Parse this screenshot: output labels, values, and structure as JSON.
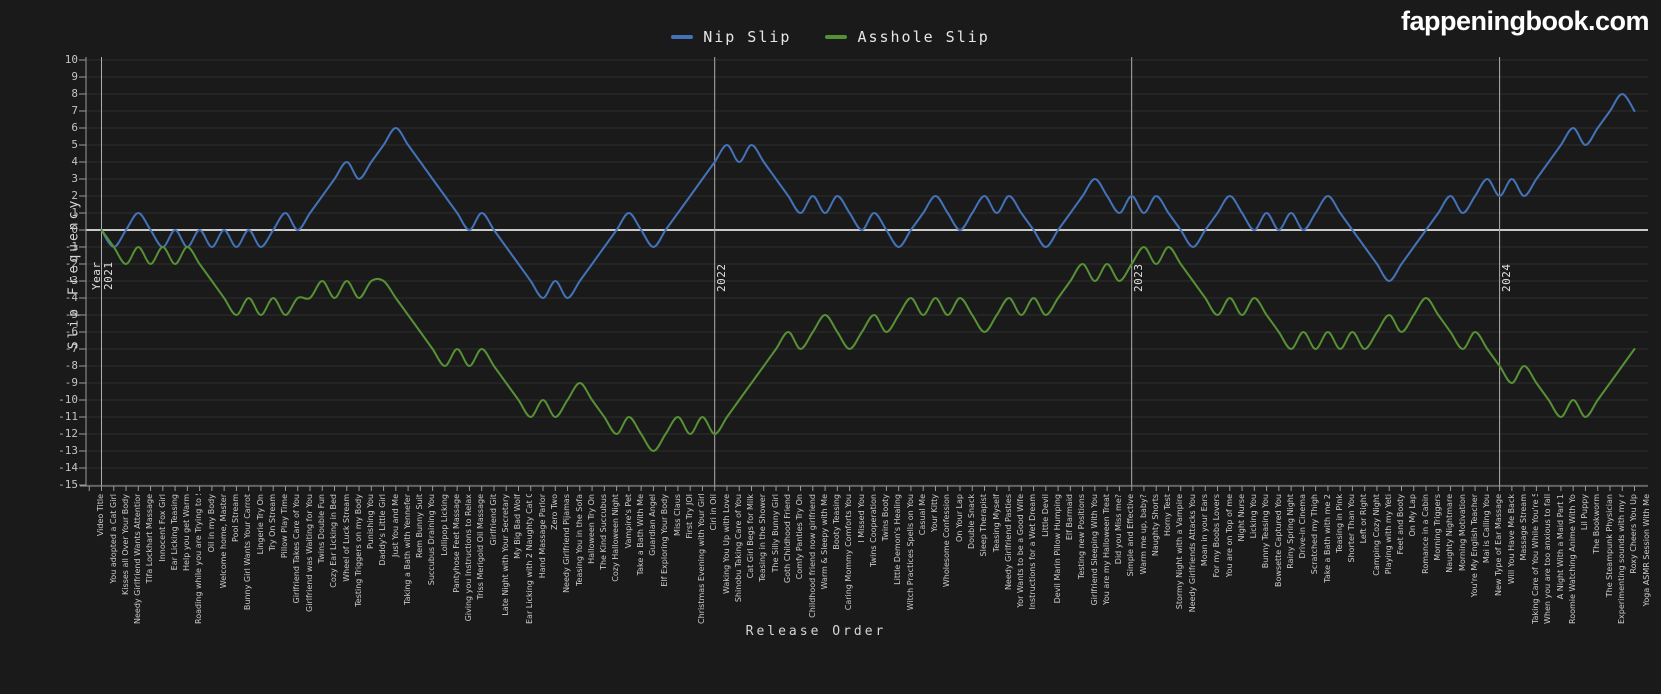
{
  "site": {
    "logo": "fappeningbook.com"
  },
  "chart_data": {
    "type": "line",
    "title": "",
    "xlabel": "Release Order",
    "ylabel": "Slip Frequency",
    "ylim": [
      -15,
      10
    ],
    "grid": true,
    "legend_position": "top-center",
    "y_ticks": [
      10,
      9,
      8,
      7,
      6,
      5,
      4,
      3,
      2,
      1,
      0,
      -1,
      -2,
      -3,
      -4,
      -5,
      -6,
      -7,
      -8,
      -9,
      -10,
      -11,
      -12,
      -13,
      -14,
      -15
    ],
    "colors": {
      "background": "#1a1a1a",
      "grid": "#2f2f2f",
      "zero_line": "#c9c9c9",
      "year_line": "#aeaeae",
      "axis": "#9a9a9a",
      "tick_text": "#c4c4c4",
      "nip_slip": "#4472b8",
      "asshole_slip": "#569135",
      "logo_text": "#ffffff"
    },
    "year_markers": [
      {
        "lines": [
          "Year",
          "2021"
        ],
        "category_index": 1
      },
      {
        "lines": [
          "2022"
        ],
        "category_index": 51
      },
      {
        "lines": [
          "2023"
        ],
        "category_index": 85
      },
      {
        "lines": [
          "2024"
        ],
        "category_index": 115
      }
    ],
    "categories": [
      "Video Title",
      "You adopted a Cat Girl",
      "Kisses all Over Your Body",
      "Needy Girlfriend Wants Attention",
      "Tifa Lockhart Massage",
      "Innocent Fox Girl",
      "Ear Licking Teasing",
      "Help you get Warm",
      "Roading while you are Trying to Sl...",
      "Oil in my Body",
      "Welcome home, Master",
      "Pool Stream",
      "Bunny Girl Wants Your Carrot",
      "Lingerie Try On",
      "Try On Stream",
      "Pillow Play Time",
      "Girlfriend Takes Care of You",
      "Girlfriend was Waiting for You",
      "Twins Double Fun",
      "Cozy Ear Licking in Bed",
      "Wheel of Luck Stream",
      "Testing Triggers on my Body",
      "Punishing You",
      "Daddy's Little Girl",
      "Just You and Me",
      "Taking a Bath with Yennefer",
      "Rem Bunny Suit",
      "Succubus Draining You",
      "Lollipop Licking",
      "Pantyhose Feet Massage",
      "Giving you Instructions to Relax",
      "Triss Merigold Oil Massage",
      "Girlfriend Git",
      "Late Night with Your Secretary",
      "My Big Bad Wolf",
      "Ear Licking with 2 Naughty Cat Girls",
      "Hand Massage Parlor",
      "Zero Two",
      "Needy Girlfriend Pijamas",
      "Teasing You in the Sofa",
      "Halloween Try On",
      "The Kind Succubus",
      "Cozy Halloween Night",
      "Vampire's Pet",
      "Take a Bath With Me",
      "Guardian Angel",
      "Elf Exploring Your Body",
      "Miss Claus",
      "First Try JOI",
      "Christmas Evening with Your Girlf...",
      "Ciri in Oil",
      "Waking You Up with Love",
      "Shinobu Taking Care of You",
      "Cat Girl Begs for Milk",
      "Teasing in the Shower",
      "The Silly Bunny Girl",
      "Goth Childhood Friend",
      "Comfy Panties Try On",
      "Childhood friend now girlfriend",
      "Warm & Sleepy with Me",
      "Booty Teasing",
      "Caring Mommy Comforts You",
      "I Missed You",
      "Twins Cooperation",
      "Twins Booty",
      "Little Demon's Healing",
      "Witch Practices Spells on You",
      "Casual Me",
      "Your Kitty",
      "Wholesome Confession",
      "On Your Lap",
      "Double Snack",
      "Sleep Therapist",
      "Teasing Myself",
      "Needy Girlfriend Pasties",
      "Yor Wants to be a Good Wife",
      "Instructions for a Wet Dream",
      "Little Devil",
      "Devil Marin Pillow Humping",
      "Elf Barmaid",
      "Testing new Positions",
      "Girlfriend Sleeping With You",
      "You are my Halloween Treat",
      "Did you Miss me?",
      "Simple and Effective",
      "Warm me up, baby?",
      "Naughty Shorts",
      "Horny Test",
      "Stormy Night with a Vampire",
      "Needy Girlfriends Attacks You",
      "Moan in your Ears",
      "For my Boobs Lovers",
      "You are on Top of me",
      "Night Nurse",
      "Licking You",
      "Bunny Teasing You",
      "Bowsette Captured You",
      "Rainy Spring Night",
      "Drive-in Cinema",
      "Scratched my Thigh",
      "Take a Bath with me 2",
      "Teasing in Pink",
      "Shorter Than You",
      "Left or Right",
      "Camping Cozy Night",
      "Playing with my Yeti",
      "Feet and Booty",
      "On My Lap",
      "Romance in a Cabin",
      "Morning Triggers",
      "Naughty Nightmare",
      "Morning Motivation",
      "You're My English Teacher",
      "Mai is Calling You",
      "New Type of Ear Massage",
      "Will You Have Me Back",
      "Massage Stream",
      "Taking Care of You While You're S...",
      "When you are too anxious to fall a...",
      "A Night With a Maid Part 1",
      "Roomie Watching Anime With You",
      "Lil Puppy",
      "The Bookworm",
      "The Steampunk Physician",
      "Experimenting sounds with my mic",
      "Roxy Cheers You Up",
      "Yoga ASMR Session With Me"
    ],
    "series": [
      {
        "name": "Nip Slip",
        "color": "#4472b8",
        "values": [
          null,
          0,
          -1,
          0,
          1,
          0,
          -1,
          0,
          -1,
          0,
          -1,
          0,
          -1,
          0,
          -1,
          0,
          1,
          0,
          1,
          2,
          3,
          4,
          3,
          4,
          5,
          6,
          5,
          4,
          3,
          2,
          1,
          0,
          1,
          0,
          -1,
          -2,
          -3,
          -4,
          -3,
          -4,
          -3,
          -2,
          -1,
          0,
          1,
          0,
          -1,
          0,
          1,
          2,
          3,
          4,
          5,
          4,
          5,
          4,
          3,
          2,
          1,
          2,
          1,
          2,
          1,
          0,
          1,
          0,
          -1,
          0,
          1,
          2,
          1,
          0,
          1,
          2,
          1,
          2,
          1,
          0,
          -1,
          0,
          1,
          2,
          3,
          2,
          1,
          2,
          1,
          2,
          1,
          0,
          -1,
          0,
          1,
          2,
          1,
          0,
          1,
          0,
          1,
          0,
          1,
          2,
          1,
          0,
          -1,
          -2,
          -3,
          -2,
          -1,
          0,
          1,
          2,
          1,
          2,
          3,
          2,
          3,
          2,
          3,
          4,
          5,
          6,
          5,
          6,
          7,
          8,
          7
        ]
      },
      {
        "name": "Asshole Slip",
        "color": "#569135",
        "values": [
          null,
          0,
          -1,
          -2,
          -1,
          -2,
          -1,
          -2,
          -1,
          -2,
          -3,
          -4,
          -5,
          -4,
          -5,
          -4,
          -5,
          -4,
          -4,
          -3,
          -4,
          -3,
          -4,
          -3,
          -3,
          -4,
          -5,
          -6,
          -7,
          -8,
          -7,
          -8,
          -7,
          -8,
          -9,
          -10,
          -11,
          -10,
          -11,
          -10,
          -9,
          -10,
          -11,
          -12,
          -11,
          -12,
          -13,
          -12,
          -11,
          -12,
          -11,
          -12,
          -11,
          -10,
          -9,
          -8,
          -7,
          -6,
          -7,
          -6,
          -5,
          -6,
          -7,
          -6,
          -5,
          -6,
          -5,
          -4,
          -5,
          -4,
          -5,
          -4,
          -5,
          -6,
          -5,
          -4,
          -5,
          -4,
          -5,
          -4,
          -3,
          -2,
          -3,
          -2,
          -3,
          -2,
          -1,
          -2,
          -1,
          -2,
          -3,
          -4,
          -5,
          -4,
          -5,
          -4,
          -5,
          -6,
          -7,
          -6,
          -7,
          -6,
          -7,
          -6,
          -7,
          -6,
          -5,
          -6,
          -5,
          -4,
          -5,
          -6,
          -7,
          -6,
          -7,
          -8,
          -9,
          -8,
          -9,
          -10,
          -11,
          -10,
          -11,
          -10,
          -9,
          -8,
          -7
        ]
      }
    ]
  }
}
